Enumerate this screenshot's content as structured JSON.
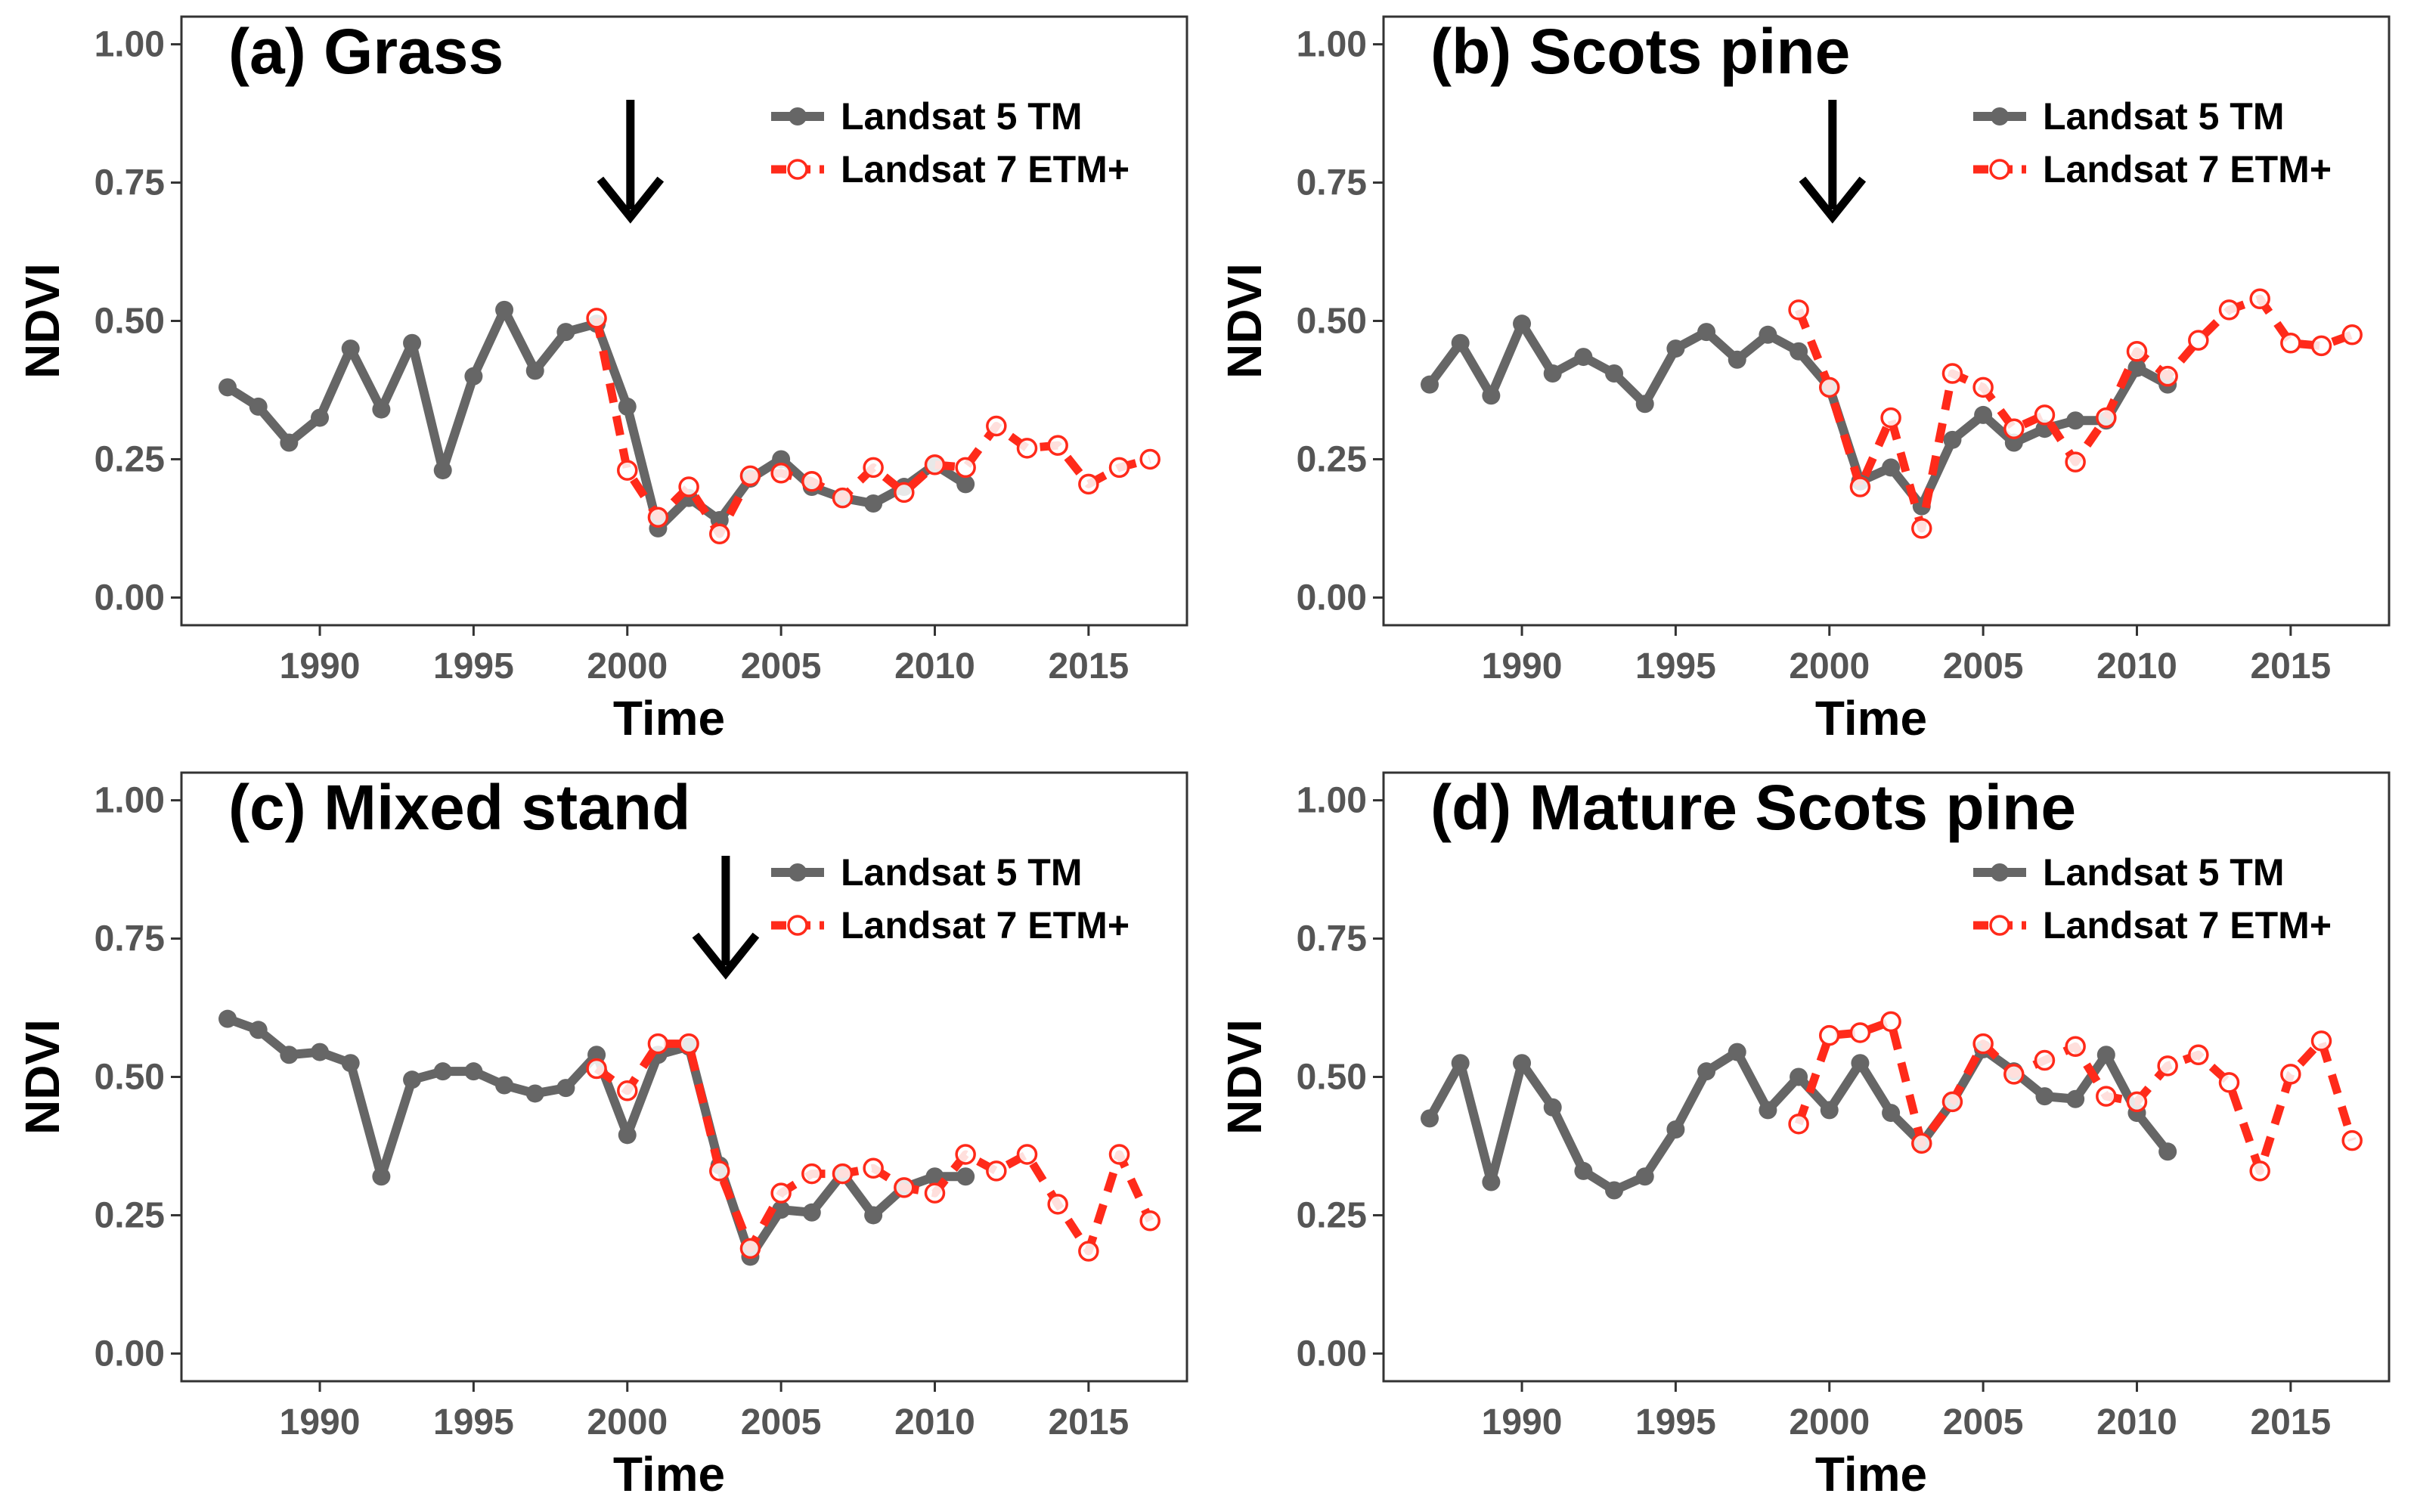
{
  "figure": {
    "legend_labels": [
      "Landsat 5 TM",
      "Landsat 7 ETM+"
    ],
    "colors": {
      "tm": "#666666",
      "etm": "#ff2a1a",
      "axis": "#333333",
      "tick_text": "#555555"
    }
  },
  "chart_data": [
    {
      "type": "line",
      "title": "(a) Grass",
      "xlabel": "Time",
      "ylabel": "NDVI",
      "xlim": [
        1985.5,
        2018.2
      ],
      "ylim": [
        -0.05,
        1.05
      ],
      "xticks": [
        1990,
        1995,
        2000,
        2005,
        2010,
        2015
      ],
      "yticks": [
        0.0,
        0.25,
        0.5,
        0.75,
        1.0
      ],
      "ytick_labels": [
        "0.00",
        "0.25",
        "0.50",
        "0.75",
        "1.00"
      ],
      "legend_position": "top-right",
      "annotation": {
        "type": "arrow",
        "x": 2000.1,
        "label": ""
      },
      "series": [
        {
          "name": "Landsat 5 TM",
          "x": [
            1987,
            1988,
            1989,
            1990,
            1991,
            1992,
            1993,
            1994,
            1995,
            1996,
            1997,
            1998,
            1999,
            2000,
            2001,
            2002,
            2003,
            2004,
            2005,
            2006,
            2007,
            2008,
            2009,
            2010,
            2011
          ],
          "y": [
            0.38,
            0.345,
            0.28,
            0.325,
            0.45,
            0.34,
            0.46,
            0.23,
            0.4,
            0.52,
            0.41,
            0.48,
            0.495,
            0.345,
            0.125,
            0.18,
            0.14,
            0.215,
            0.25,
            0.2,
            0.18,
            0.17,
            0.2,
            0.24,
            0.205
          ]
        },
        {
          "name": "Landsat 7 ETM+",
          "x": [
            1999,
            2000,
            2001,
            2002,
            2003,
            2004,
            2005,
            2006,
            2007,
            2008,
            2009,
            2010,
            2011,
            2012,
            2013,
            2014,
            2015,
            2016,
            2017
          ],
          "y": [
            0.505,
            0.23,
            0.145,
            0.2,
            0.115,
            0.22,
            0.225,
            0.21,
            0.18,
            0.235,
            0.19,
            0.24,
            0.235,
            0.31,
            0.27,
            0.275,
            0.205,
            0.235,
            0.25
          ]
        }
      ]
    },
    {
      "type": "line",
      "title": "(b) Scots pine",
      "xlabel": "Time",
      "ylabel": "NDVI",
      "xlim": [
        1985.5,
        2018.2
      ],
      "ylim": [
        -0.05,
        1.05
      ],
      "xticks": [
        1990,
        1995,
        2000,
        2005,
        2010,
        2015
      ],
      "yticks": [
        0.0,
        0.25,
        0.5,
        0.75,
        1.0
      ],
      "ytick_labels": [
        "0.00",
        "0.25",
        "0.50",
        "0.75",
        "1.00"
      ],
      "legend_position": "top-right",
      "annotation": {
        "type": "arrow",
        "x": 2000.1,
        "label": ""
      },
      "series": [
        {
          "name": "Landsat 5 TM",
          "x": [
            1987,
            1988,
            1989,
            1990,
            1991,
            1992,
            1993,
            1994,
            1995,
            1996,
            1997,
            1998,
            1999,
            2000,
            2001,
            2002,
            2003,
            2004,
            2005,
            2006,
            2007,
            2008,
            2009,
            2010,
            2011
          ],
          "y": [
            0.385,
            0.46,
            0.365,
            0.495,
            0.405,
            0.435,
            0.405,
            0.35,
            0.45,
            0.48,
            0.43,
            0.475,
            0.445,
            0.38,
            0.21,
            0.235,
            0.165,
            0.285,
            0.33,
            0.28,
            0.305,
            0.32,
            0.32,
            0.415,
            0.385
          ]
        },
        {
          "name": "Landsat 7 ETM+",
          "x": [
            1999,
            2000,
            2001,
            2002,
            2003,
            2004,
            2005,
            2006,
            2007,
            2008,
            2009,
            2010,
            2011,
            2012,
            2013,
            2014,
            2015,
            2016,
            2017
          ],
          "y": [
            0.52,
            0.38,
            0.2,
            0.325,
            0.125,
            0.405,
            0.38,
            0.305,
            0.33,
            0.245,
            0.325,
            0.445,
            0.4,
            0.465,
            0.52,
            0.54,
            0.46,
            0.455,
            0.475
          ]
        }
      ]
    },
    {
      "type": "line",
      "title": "(c) Mixed stand",
      "xlabel": "Time",
      "ylabel": "NDVI",
      "xlim": [
        1985.5,
        2018.2
      ],
      "ylim": [
        -0.05,
        1.05
      ],
      "xticks": [
        1990,
        1995,
        2000,
        2005,
        2010,
        2015
      ],
      "yticks": [
        0.0,
        0.25,
        0.5,
        0.75,
        1.0
      ],
      "ytick_labels": [
        "0.00",
        "0.25",
        "0.50",
        "0.75",
        "1.00"
      ],
      "legend_position": "top-right",
      "annotation": {
        "type": "arrow",
        "x": 2003.2,
        "label": ""
      },
      "series": [
        {
          "name": "Landsat 5 TM",
          "x": [
            1987,
            1988,
            1989,
            1990,
            1991,
            1992,
            1993,
            1994,
            1995,
            1996,
            1997,
            1998,
            1999,
            2000,
            2001,
            2002,
            2003,
            2004,
            2005,
            2006,
            2007,
            2008,
            2009,
            2010,
            2011
          ],
          "y": [
            0.605,
            0.585,
            0.54,
            0.545,
            0.525,
            0.32,
            0.495,
            0.51,
            0.51,
            0.485,
            0.47,
            0.48,
            0.54,
            0.395,
            0.54,
            0.555,
            0.34,
            0.175,
            0.26,
            0.255,
            0.325,
            0.25,
            0.3,
            0.32,
            0.32
          ]
        },
        {
          "name": "Landsat 7 ETM+",
          "x": [
            1999,
            2000,
            2001,
            2002,
            2003,
            2004,
            2005,
            2006,
            2007,
            2008,
            2009,
            2010,
            2011,
            2012,
            2013,
            2014,
            2015,
            2016,
            2017
          ],
          "y": [
            0.515,
            0.475,
            0.56,
            0.56,
            0.33,
            0.19,
            0.29,
            0.325,
            0.325,
            0.335,
            0.3,
            0.29,
            0.36,
            0.33,
            0.36,
            0.27,
            0.185,
            0.36,
            0.24
          ]
        }
      ]
    },
    {
      "type": "line",
      "title": "(d) Mature Scots pine",
      "xlabel": "Time",
      "ylabel": "NDVI",
      "xlim": [
        1985.5,
        2018.2
      ],
      "ylim": [
        -0.05,
        1.05
      ],
      "xticks": [
        1990,
        1995,
        2000,
        2005,
        2010,
        2015
      ],
      "yticks": [
        0.0,
        0.25,
        0.5,
        0.75,
        1.0
      ],
      "ytick_labels": [
        "0.00",
        "0.25",
        "0.50",
        "0.75",
        "1.00"
      ],
      "legend_position": "top-right",
      "annotation": null,
      "series": [
        {
          "name": "Landsat 5 TM",
          "x": [
            1987,
            1988,
            1989,
            1990,
            1991,
            1992,
            1993,
            1994,
            1995,
            1996,
            1997,
            1998,
            1999,
            2000,
            2001,
            2002,
            2003,
            2004,
            2005,
            2006,
            2007,
            2008,
            2009,
            2010,
            2011
          ],
          "y": [
            0.425,
            0.525,
            0.31,
            0.525,
            0.445,
            0.33,
            0.295,
            0.32,
            0.405,
            0.51,
            0.545,
            0.44,
            0.5,
            0.44,
            0.525,
            0.435,
            0.38,
            0.455,
            0.55,
            0.51,
            0.465,
            0.46,
            0.54,
            0.435,
            0.365
          ]
        },
        {
          "name": "Landsat 7 ETM+",
          "x": [
            1999,
            2000,
            2001,
            2002,
            2003,
            2004,
            2005,
            2006,
            2007,
            2008,
            2009,
            2010,
            2011,
            2012,
            2013,
            2014,
            2015,
            2016,
            2017
          ],
          "y": [
            0.415,
            0.575,
            0.58,
            0.6,
            0.38,
            0.455,
            0.56,
            0.505,
            0.53,
            0.555,
            0.465,
            0.455,
            0.52,
            0.54,
            0.49,
            0.33,
            0.505,
            0.565,
            0.385
          ]
        }
      ]
    }
  ]
}
